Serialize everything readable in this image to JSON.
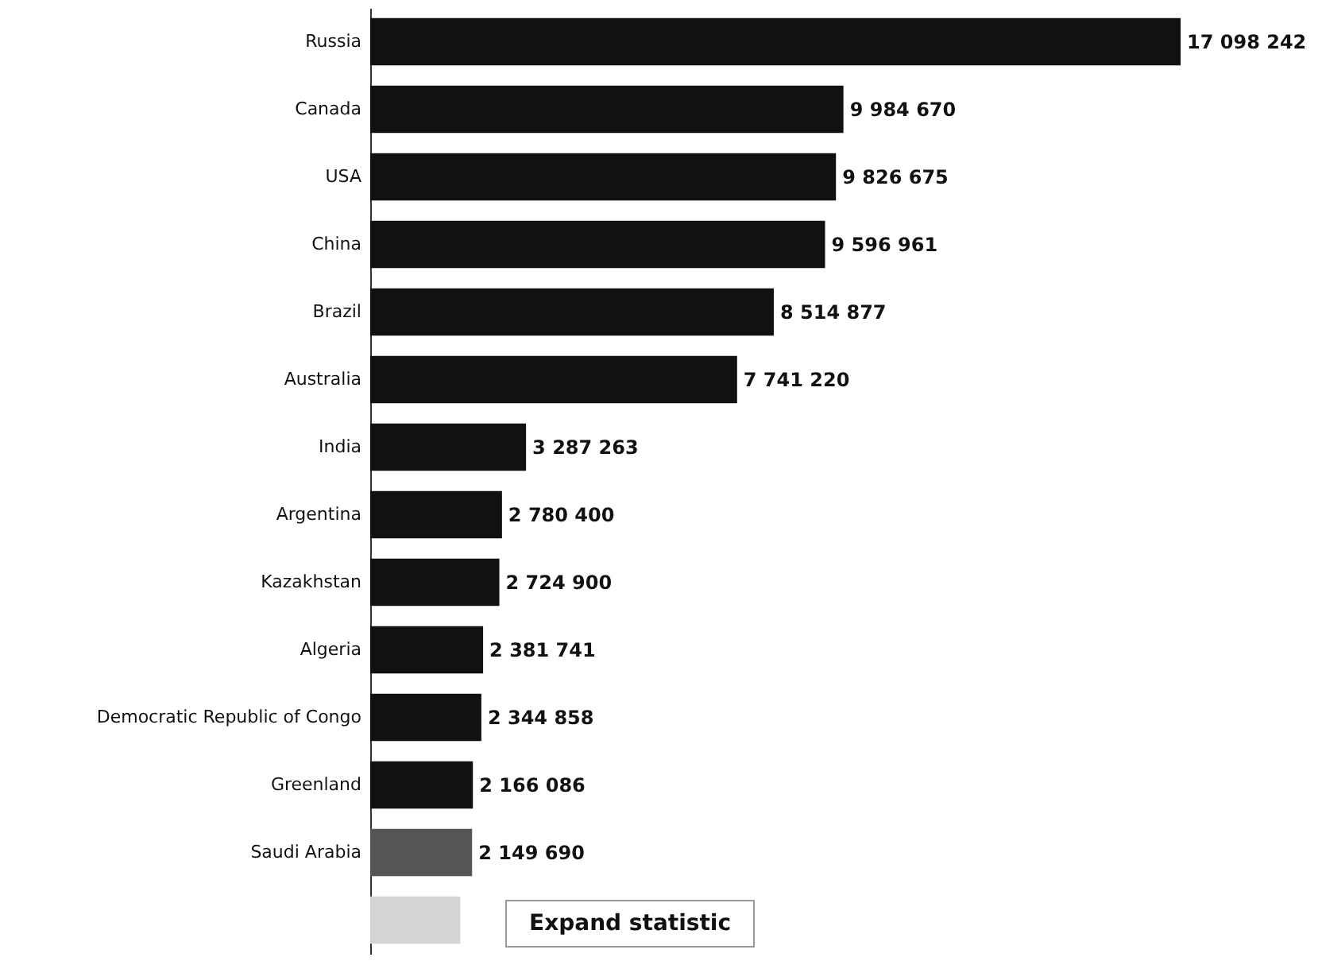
{
  "chart_data": {
    "type": "bar",
    "orientation": "horizontal",
    "categories": [
      "Russia",
      "Canada",
      "USA",
      "China",
      "Brazil",
      "Australia",
      "India",
      "Argentina",
      "Kazakhstan",
      "Algeria",
      "Democratic Republic of Congo",
      "Greenland",
      "Saudi Arabia",
      null
    ],
    "values": [
      17098242,
      9984670,
      9826675,
      9596961,
      8514877,
      7741220,
      3287263,
      2780400,
      2724900,
      2381741,
      2344858,
      2166086,
      2149690,
      1900000
    ],
    "colors": [
      "#111111",
      "#111111",
      "#111111",
      "#111111",
      "#111111",
      "#111111",
      "#111111",
      "#111111",
      "#111111",
      "#111111",
      "#111111",
      "#111111",
      "#555555",
      "#d4d4d4"
    ],
    "value_labels": [
      "17 098 242",
      "9 984 670",
      "9 826 675",
      "9 596 961",
      "8 514 877",
      "7 741 220",
      "3 287 263",
      "2 780 400",
      "2 724 900",
      "2 381 741",
      "2 344 858",
      "2 166 086",
      "2 149 690",
      null
    ],
    "annotations": [
      "Expand statistic"
    ]
  }
}
